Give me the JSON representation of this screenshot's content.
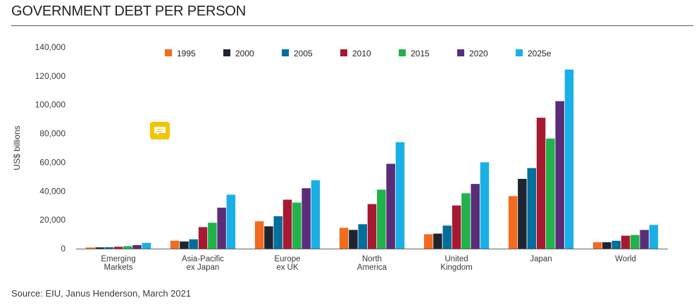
{
  "header": {
    "title": "GOVERNMENT DEBT PER PERSON"
  },
  "footer": {
    "source": "Source: EIU, Janus Henderson, March 2021"
  },
  "colors": {
    "1995": "#f26b1f",
    "2000": "#1f2530",
    "2005": "#006f9c",
    "2010": "#a71930",
    "2015": "#21b24b",
    "2020": "#5a2d78",
    "2025e": "#1ab0e6",
    "comment_icon": "#f5c400"
  },
  "icons": {
    "comment": "speech-bubble-icon"
  },
  "chart_data": {
    "type": "bar",
    "title": "",
    "ylabel": "US$ billions",
    "xlabel": "",
    "ylim": [
      0,
      140000
    ],
    "yticks": [
      "0",
      "20,000",
      "40,000",
      "60,000",
      "80,000",
      "100,000",
      "120,000",
      "140,000"
    ],
    "ytick_values": [
      0,
      20000,
      40000,
      60000,
      80000,
      100000,
      120000,
      140000
    ],
    "legend_position": "top",
    "grid": false,
    "categories": [
      [
        "Emerging",
        "Markets"
      ],
      [
        "Asia-Pacific",
        "ex Japan"
      ],
      [
        "Europe",
        "ex UK"
      ],
      [
        "North",
        "America"
      ],
      [
        "United",
        "Kingdom"
      ],
      [
        "Japan"
      ],
      [
        "World"
      ]
    ],
    "series": [
      {
        "name": "1995",
        "values": [
          800,
          5500,
          19000,
          14500,
          10000,
          36500,
          4500
        ]
      },
      {
        "name": "2000",
        "values": [
          900,
          5000,
          15500,
          13000,
          10500,
          48500,
          4500
        ]
      },
      {
        "name": "2005",
        "values": [
          1000,
          6500,
          22500,
          17000,
          16000,
          56000,
          5500
        ]
      },
      {
        "name": "2010",
        "values": [
          1300,
          15000,
          34000,
          31000,
          30000,
          91000,
          9000
        ]
      },
      {
        "name": "2015",
        "values": [
          1700,
          18000,
          32000,
          41000,
          38500,
          76500,
          9500
        ]
      },
      {
        "name": "2020",
        "values": [
          2500,
          28500,
          42000,
          59000,
          45000,
          102500,
          13000
        ]
      },
      {
        "name": "2025e",
        "values": [
          4000,
          37500,
          47500,
          74000,
          60000,
          124500,
          16500
        ]
      }
    ]
  }
}
